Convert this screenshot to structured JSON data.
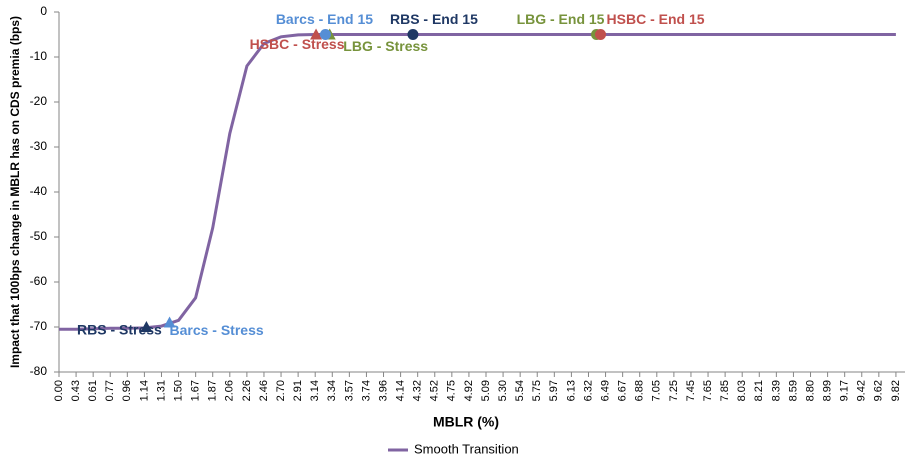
{
  "chart_data": {
    "type": "line",
    "xlabel": "MBLR (%)",
    "ylabel": "Impact that 100bps change in MBLR has on CDS premia (bps)",
    "ylim": [
      -80,
      0
    ],
    "yticks": [
      0,
      -10,
      -20,
      -30,
      -40,
      -50,
      -60,
      -70,
      -80
    ],
    "xticks": [
      {
        "value": 0,
        "label": "0.00"
      },
      0.43,
      0.61,
      0.77,
      0.96,
      1.14,
      1.31,
      {
        "value": 1.5,
        "label": "1.50"
      },
      1.67,
      1.87,
      2.06,
      2.26,
      2.46,
      {
        "value": 2.7,
        "label": "2.70"
      },
      2.91,
      3.14,
      3.34,
      3.57,
      3.74,
      3.96,
      4.14,
      4.32,
      4.52,
      4.75,
      4.92,
      5.09,
      {
        "value": 5.3,
        "label": "5.30"
      },
      5.54,
      5.75,
      5.97,
      6.13,
      6.32,
      6.49,
      6.67,
      6.88,
      7.05,
      7.25,
      7.45,
      7.65,
      7.85,
      8.03,
      8.21,
      8.39,
      8.59,
      {
        "value": 8.8,
        "label": "8.80"
      },
      8.99,
      9.17,
      9.42,
      9.62,
      9.82
    ],
    "series": [
      {
        "name": "Smooth Transition",
        "color": "#8064a2",
        "x": [
          0,
          0.43,
          0.61,
          0.77,
          0.96,
          1.14,
          1.31,
          1.5,
          1.67,
          1.87,
          2.06,
          2.26,
          2.46,
          2.7,
          2.91,
          3.14,
          3.34,
          3.57,
          3.74,
          3.96,
          4.14,
          4.32,
          4.52,
          4.75,
          4.92,
          5.09,
          5.3,
          5.54,
          5.75,
          5.97,
          6.13,
          6.32,
          6.49,
          6.67,
          6.88,
          7.05,
          7.25,
          7.45,
          7.65,
          7.85,
          8.03,
          8.21,
          8.39,
          8.59,
          8.8,
          8.99,
          9.17,
          9.42,
          9.62,
          9.82
        ],
        "values": [
          -70.5,
          -70.5,
          -70.4,
          -70.3,
          -70.3,
          -70.2,
          -69.8,
          -68.5,
          -63.5,
          -48,
          -27,
          -12,
          -7,
          -5.5,
          -5.1,
          -5,
          -5,
          -5,
          -5,
          -5,
          -5,
          -5,
          -5,
          -5,
          -5,
          -5,
          -5,
          -5,
          -5,
          -5,
          -5,
          -5,
          -5,
          -5,
          -5,
          -5,
          -5,
          -5,
          -5,
          -5,
          -5,
          -5,
          -5,
          -5,
          -5,
          -5,
          -5,
          -5,
          -5,
          -5
        ]
      }
    ],
    "points": [
      {
        "label": "RBS - Stress",
        "x": 1.16,
        "y": -70,
        "color": "#1f3864",
        "marker": "triangle"
      },
      {
        "label": "Barcs - Stress",
        "x": 1.4,
        "y": -69,
        "color": "#558ed5",
        "marker": "triangle"
      },
      {
        "label": "HSBC - Stress",
        "x": 3.15,
        "y": -5,
        "color": "#c0504d",
        "marker": "triangle"
      },
      {
        "label": "LBG - Stress",
        "x": 3.31,
        "y": -5,
        "color": "#77933c",
        "marker": "triangle"
      },
      {
        "label": "Barcs - End 15",
        "x": 3.26,
        "y": -5,
        "color": "#558ed5",
        "marker": "circle"
      },
      {
        "label": "RBS - End 15",
        "x": 4.27,
        "y": -5,
        "color": "#1f3864",
        "marker": "circle"
      },
      {
        "label": "LBG - End 15",
        "x": 6.4,
        "y": -5,
        "color": "#77933c",
        "marker": "circle"
      },
      {
        "label": "HSBC - End 15",
        "x": 6.44,
        "y": -5,
        "color": "#c0504d",
        "marker": "circle"
      }
    ]
  }
}
